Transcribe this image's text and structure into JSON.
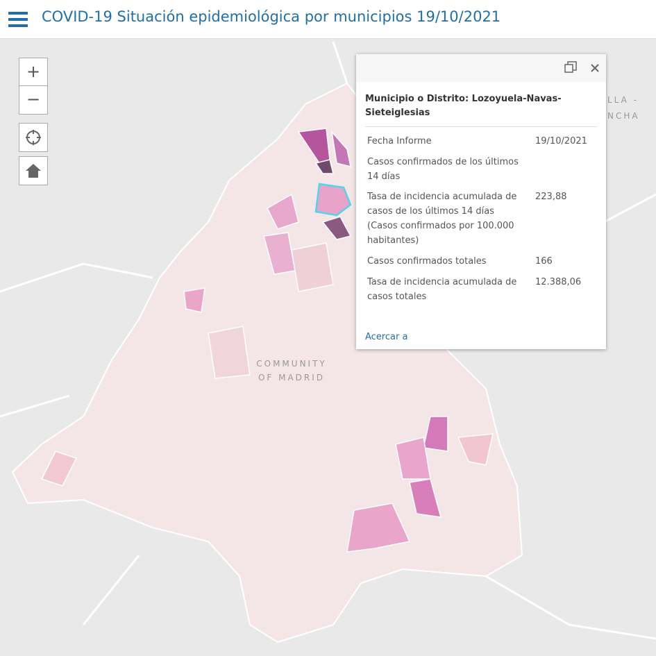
{
  "header": {
    "title": "COVID-19 Situación epidemiológica por municipios 19/10/2021"
  },
  "controls": {
    "zoom_in": "+",
    "zoom_out": "−"
  },
  "map_labels": {
    "region": [
      "COMMUNITY",
      "OF MADRID"
    ],
    "neighbor": [
      "LLA -",
      "NCHA"
    ]
  },
  "popup": {
    "title": "Municipio o Distrito: Lozoyuela-Navas-Sieteiglesias",
    "rows": [
      {
        "label": "Fecha Informe",
        "value": "19/10/2021"
      },
      {
        "label": "Casos confirmados de los últimos 14 días"
      },
      {
        "label": "Tasa de incidencia acumulada de casos de los últimos 14 días (Casos confirmados por 100.000 habitantes)",
        "value": "223,88"
      },
      {
        "label": "Casos confirmados totales",
        "value": "166"
      },
      {
        "label": "Tasa de incidencia acumulada de casos totales",
        "value": "12.388,06"
      }
    ],
    "link": "Acercar a"
  }
}
